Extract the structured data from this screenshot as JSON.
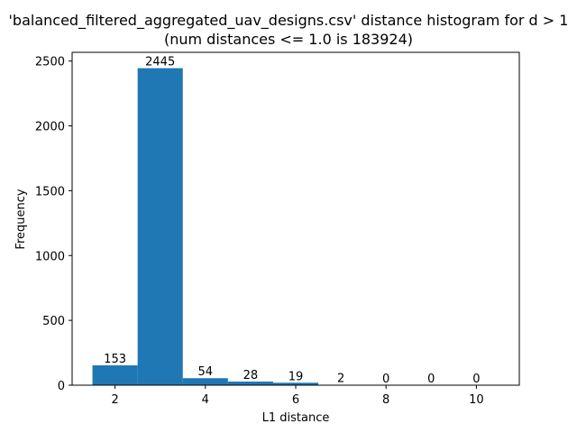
{
  "chart_data": {
    "type": "bar",
    "title": "'balanced_filtered_aggregated_uav_designs.csv' distance histogram for d > 1",
    "subtitle": "(num distances <= 1.0 is 183924)",
    "xlabel": "L1 distance",
    "ylabel": "Frequency",
    "xlim": [
      1.05,
      10.95
    ],
    "ylim": [
      0,
      2567.25
    ],
    "xticks": [
      2,
      4,
      6,
      8,
      10
    ],
    "yticks": [
      0,
      500,
      1000,
      1500,
      2000,
      2500
    ],
    "bin_edges": [
      1.5,
      2.5,
      3.5,
      4.5,
      5.5,
      6.5,
      7.5,
      8.5,
      9.5,
      10.5
    ],
    "values": [
      153,
      2445,
      54,
      28,
      19,
      2,
      0,
      0,
      0
    ],
    "grid": false,
    "bar_color": "#1f77b4"
  }
}
